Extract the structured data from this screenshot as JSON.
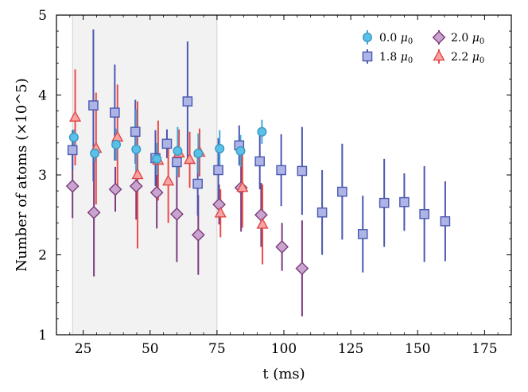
{
  "chart_data": {
    "type": "scatter",
    "title": "",
    "xlabel": "t (ms)",
    "ylabel": "Number of atoms (×10^5)",
    "xlim": [
      15,
      185
    ],
    "ylim": [
      1,
      5
    ],
    "xticks": [
      25,
      50,
      75,
      100,
      125,
      150,
      175
    ],
    "yticks": [
      1,
      2,
      3,
      4,
      5
    ],
    "shaded_region": [
      21,
      75
    ],
    "legend_position": "top-right",
    "series": [
      {
        "name": "0.0 μ0",
        "legend_value": "0.0",
        "marker": "circle",
        "color": "#5bc0e8",
        "edge": "#3a97c2",
        "err_color": "#42a8d8",
        "points": [
          {
            "x": 21.5,
            "y": 3.47,
            "err": 0.1
          },
          {
            "x": 29.3,
            "y": 3.27,
            "err": 0.1
          },
          {
            "x": 37.3,
            "y": 3.38,
            "err": 0.2
          },
          {
            "x": 44.8,
            "y": 3.32,
            "err": 0.5
          },
          {
            "x": 52.5,
            "y": 3.2,
            "err": 0.2
          },
          {
            "x": 60.3,
            "y": 3.3,
            "err": 0.3
          },
          {
            "x": 68.0,
            "y": 3.27,
            "err": 0.25
          },
          {
            "x": 76.0,
            "y": 3.33,
            "err": 0.23
          },
          {
            "x": 83.8,
            "y": 3.3,
            "err": 0.2
          },
          {
            "x": 91.8,
            "y": 3.54,
            "err": 0.15
          }
        ]
      },
      {
        "name": "1.8 μ0",
        "legend_value": "1.8",
        "marker": "square",
        "color": "#aeb4e6",
        "edge": "#4a58b0",
        "err_color": "#4a58b0",
        "points": [
          {
            "x": 21.0,
            "y": 3.31,
            "err": 0.25
          },
          {
            "x": 28.8,
            "y": 3.87,
            "err": 0.95
          },
          {
            "x": 36.8,
            "y": 3.78,
            "err": 0.6
          },
          {
            "x": 44.5,
            "y": 3.54,
            "err": 0.4
          },
          {
            "x": 52.0,
            "y": 3.21,
            "err": 0.35
          },
          {
            "x": 56.3,
            "y": 3.39,
            "err": 0.18
          },
          {
            "x": 60.0,
            "y": 3.16,
            "err": 0.2
          },
          {
            "x": 64.0,
            "y": 3.92,
            "err": 0.75
          },
          {
            "x": 67.8,
            "y": 2.89,
            "err": 0.4
          },
          {
            "x": 75.5,
            "y": 3.06,
            "err": 0.4
          },
          {
            "x": 83.3,
            "y": 3.37,
            "err": 0.25
          },
          {
            "x": 91.0,
            "y": 3.17,
            "err": 0.35
          },
          {
            "x": 99.0,
            "y": 3.06,
            "err": 0.45
          },
          {
            "x": 106.8,
            "y": 3.05,
            "err": 0.55
          },
          {
            "x": 114.3,
            "y": 2.53,
            "err": 0.53
          },
          {
            "x": 121.8,
            "y": 2.79,
            "err": 0.6
          },
          {
            "x": 129.5,
            "y": 2.26,
            "err": 0.48
          },
          {
            "x": 137.5,
            "y": 2.65,
            "err": 0.55
          },
          {
            "x": 145.0,
            "y": 2.66,
            "err": 0.36
          },
          {
            "x": 152.5,
            "y": 2.51,
            "err": 0.6
          },
          {
            "x": 160.3,
            "y": 2.42,
            "err": 0.5
          }
        ]
      },
      {
        "name": "2.0 μ0",
        "legend_value": "2.0",
        "marker": "diamond",
        "color": "#c9a4cf",
        "edge": "#7d3b7d",
        "err_color": "#7d3b7d",
        "points": [
          {
            "x": 21.0,
            "y": 2.86,
            "err": 0.4
          },
          {
            "x": 29.0,
            "y": 2.53,
            "err": 0.8
          },
          {
            "x": 37.0,
            "y": 2.82,
            "err": 0.28
          },
          {
            "x": 44.8,
            "y": 2.86,
            "err": 0.42
          },
          {
            "x": 52.5,
            "y": 2.78,
            "err": 0.45
          },
          {
            "x": 60.0,
            "y": 2.51,
            "err": 0.6
          },
          {
            "x": 68.0,
            "y": 2.25,
            "err": 0.5
          },
          {
            "x": 75.8,
            "y": 2.63,
            "err": 0.25
          },
          {
            "x": 84.0,
            "y": 2.84,
            "err": 0.55
          },
          {
            "x": 91.5,
            "y": 2.5,
            "err": 0.4
          },
          {
            "x": 99.3,
            "y": 2.1,
            "err": 0.3
          },
          {
            "x": 106.8,
            "y": 1.83,
            "err": 0.6
          }
        ]
      },
      {
        "name": "2.2 μ0",
        "legend_value": "2.2",
        "marker": "triangle",
        "color": "#f7a3a3",
        "edge": "#e04848",
        "err_color": "#ec4a4a",
        "points": [
          {
            "x": 22.0,
            "y": 3.72,
            "err": 0.6
          },
          {
            "x": 29.8,
            "y": 3.33,
            "err": 0.7
          },
          {
            "x": 37.8,
            "y": 3.47,
            "err": 0.66
          },
          {
            "x": 45.3,
            "y": 3.0,
            "err": 0.92
          },
          {
            "x": 53.0,
            "y": 3.18,
            "err": 0.5
          },
          {
            "x": 56.8,
            "y": 2.92,
            "err": 0.52
          },
          {
            "x": 60.8,
            "y": 3.27,
            "err": 0.3
          },
          {
            "x": 64.8,
            "y": 3.19,
            "err": 0.35
          },
          {
            "x": 68.5,
            "y": 3.28,
            "err": 0.3
          },
          {
            "x": 76.3,
            "y": 2.52,
            "err": 0.3
          },
          {
            "x": 84.5,
            "y": 2.84,
            "err": 0.5
          },
          {
            "x": 92.0,
            "y": 2.38,
            "err": 0.5
          }
        ]
      }
    ]
  }
}
